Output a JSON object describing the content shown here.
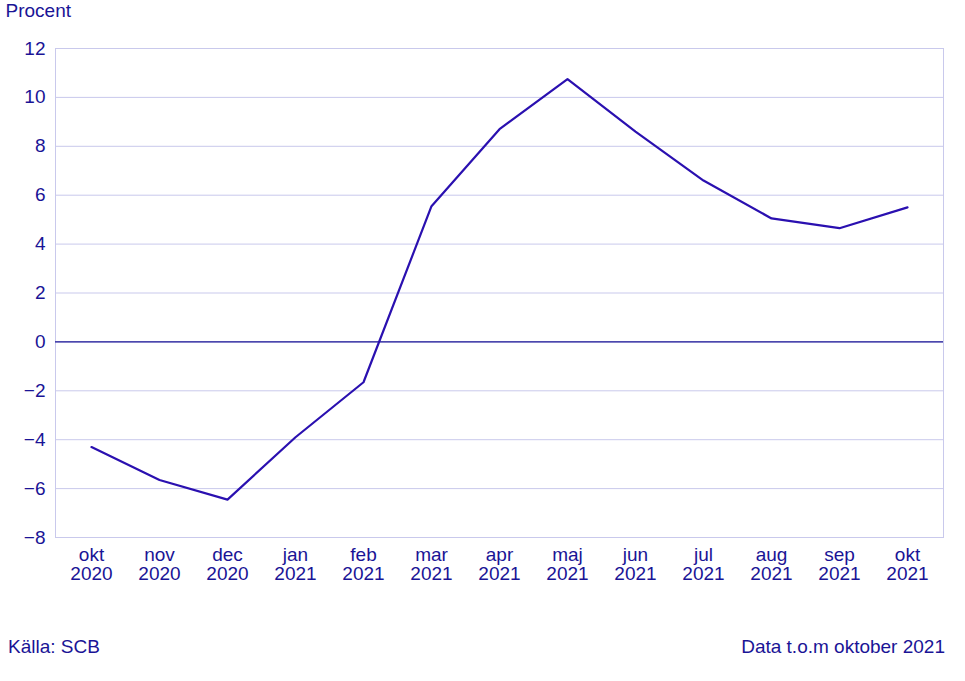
{
  "chart_data": {
    "type": "line",
    "y_label": "Procent",
    "source": "Källa: SCB",
    "note": "Data t.o.m oktober 2021",
    "categories": [
      "okt 2020",
      "nov 2020",
      "dec 2020",
      "jan 2021",
      "feb 2021",
      "mar 2021",
      "apr 2021",
      "maj 2021",
      "jun 2021",
      "jul 2021",
      "aug 2021",
      "sep 2021",
      "okt 2021"
    ],
    "values": [
      -4.3,
      -5.65,
      -6.45,
      -3.9,
      -1.65,
      5.55,
      8.7,
      10.75,
      8.6,
      6.6,
      5.05,
      4.65,
      5.5
    ],
    "color": "#2a10b0",
    "ylim": [
      -8,
      12
    ],
    "yticks": [
      -8,
      -6,
      -4,
      -2,
      0,
      2,
      4,
      6,
      8,
      10,
      12
    ],
    "grid": true
  }
}
